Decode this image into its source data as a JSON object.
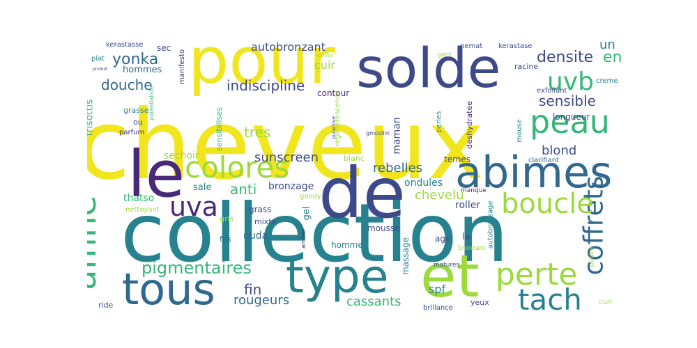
{
  "palette": {
    "yellow": "#f1e51d",
    "lime": "#9bd93c",
    "green": "#35b779",
    "teal": "#26828e",
    "steel": "#31688e",
    "indigo": "#3e4989",
    "purple": "#482878",
    "violet": "#440154"
  },
  "words": [
    {
      "text": "cheveux",
      "color": "yellow"
    },
    {
      "text": "collection",
      "color": "teal"
    },
    {
      "text": "de",
      "color": "indigo"
    },
    {
      "text": "pour",
      "color": "yellow"
    },
    {
      "text": "solde",
      "color": "indigo"
    },
    {
      "text": "le",
      "color": "purple"
    },
    {
      "text": "et",
      "color": "lime"
    },
    {
      "text": "type",
      "color": "teal"
    },
    {
      "text": "tous",
      "color": "steel"
    },
    {
      "text": "abimes",
      "color": "steel"
    },
    {
      "text": "affine",
      "color": "green"
    },
    {
      "text": "coffrets",
      "color": "steel"
    },
    {
      "text": "colores",
      "color": "lime"
    },
    {
      "text": "peau",
      "color": "green"
    },
    {
      "text": "boucle",
      "color": "lime"
    },
    {
      "text": "perte",
      "color": "lime"
    },
    {
      "text": "tach",
      "color": "teal"
    },
    {
      "text": "uvb",
      "color": "green"
    },
    {
      "text": "uva",
      "color": "purple"
    },
    {
      "text": "pigmentaires",
      "color": "green"
    },
    {
      "text": "yonka",
      "color": "steel"
    },
    {
      "text": "densite",
      "color": "indigo"
    },
    {
      "text": "en",
      "color": "green"
    },
    {
      "text": "un",
      "color": "teal"
    },
    {
      "text": "sensible",
      "color": "indigo"
    },
    {
      "text": "douche",
      "color": "steel"
    },
    {
      "text": "indiscipline",
      "color": "indigo"
    },
    {
      "text": "autobronzant",
      "color": "indigo"
    },
    {
      "text": "cuir",
      "color": "lime"
    },
    {
      "text": "contour",
      "color": "purple"
    },
    {
      "text": "blond",
      "color": "indigo"
    },
    {
      "text": "rebelles",
      "color": "steel"
    },
    {
      "text": "anti",
      "color": "green"
    },
    {
      "text": "tres",
      "color": "lime"
    },
    {
      "text": "sunscreen",
      "color": "indigo"
    },
    {
      "text": "fin",
      "color": "indigo"
    },
    {
      "text": "rougeurs",
      "color": "steel"
    },
    {
      "text": "cassants",
      "color": "green"
    },
    {
      "text": "spf",
      "color": "teal"
    },
    {
      "text": "chevelu",
      "color": "lime"
    },
    {
      "text": "ondules",
      "color": "teal"
    },
    {
      "text": "bronzage",
      "color": "indigo"
    },
    {
      "text": "maman",
      "color": "indigo"
    },
    {
      "text": "sechoir",
      "color": "lime"
    },
    {
      "text": "thatso",
      "color": "green"
    },
    {
      "text": "sale",
      "color": "teal"
    },
    {
      "text": "hommes",
      "color": "steel"
    },
    {
      "text": "sec",
      "color": "indigo"
    },
    {
      "text": "kerastasse",
      "color": "indigo"
    },
    {
      "text": "plat",
      "color": "teal"
    },
    {
      "text": "produit",
      "color": "indigo"
    },
    {
      "text": "manifesto",
      "color": "purple"
    },
    {
      "text": "collin",
      "color": "lime"
    },
    {
      "text": "gant",
      "color": "lime"
    },
    {
      "text": "nemat",
      "color": "indigo"
    },
    {
      "text": "kerastase",
      "color": "indigo"
    },
    {
      "text": "racine",
      "color": "indigo"
    },
    {
      "text": "creme",
      "color": "teal"
    },
    {
      "text": "exfoliant",
      "color": "indigo"
    },
    {
      "text": "longueur",
      "color": "indigo"
    },
    {
      "text": "deshydratee",
      "color": "purple"
    },
    {
      "text": "perles",
      "color": "teal"
    },
    {
      "text": "mouse",
      "color": "teal"
    },
    {
      "text": "clarifiant",
      "color": "steel"
    },
    {
      "text": "ternes",
      "color": "indigo"
    },
    {
      "text": "blanc",
      "color": "lime"
    },
    {
      "text": "regenerescence",
      "color": "lime"
    },
    {
      "text": "puractive",
      "color": "indigo"
    },
    {
      "text": "gmcollin",
      "color": "indigo"
    },
    {
      "text": "grasse",
      "color": "teal"
    },
    {
      "text": "ou",
      "color": "indigo"
    },
    {
      "text": "parfum",
      "color": "purple"
    },
    {
      "text": "potentialiste",
      "color": "green"
    },
    {
      "text": "frisottis",
      "color": "green"
    },
    {
      "text": "sensibilises",
      "color": "green"
    },
    {
      "text": "grass",
      "color": "indigo"
    },
    {
      "text": "goody",
      "color": "lime"
    },
    {
      "text": "gris",
      "color": "lime"
    },
    {
      "text": "mixte",
      "color": "indigo"
    },
    {
      "text": "gel",
      "color": "teal"
    },
    {
      "text": "amber",
      "color": "purple"
    },
    {
      "text": "fps",
      "color": "steel"
    },
    {
      "text": "nuda",
      "color": "steel"
    },
    {
      "text": "roller",
      "color": "indigo"
    },
    {
      "text": "manque",
      "color": "purple"
    },
    {
      "text": "nettoyant",
      "color": "lime"
    },
    {
      "text": "mousse",
      "color": "indigo"
    },
    {
      "text": "age",
      "color": "indigo"
    },
    {
      "text": "la",
      "color": "indigo"
    },
    {
      "text": "homme",
      "color": "teal"
    },
    {
      "text": "massage",
      "color": "teal"
    },
    {
      "text": "bronzant",
      "color": "lime"
    },
    {
      "text": "autobronzage",
      "color": "teal"
    },
    {
      "text": "matures",
      "color": "indigo"
    },
    {
      "text": "solaire",
      "color": "lime"
    },
    {
      "text": "brillance",
      "color": "indigo"
    },
    {
      "text": "yeux",
      "color": "indigo"
    },
    {
      "text": "ride",
      "color": "indigo"
    },
    {
      "text": "curl",
      "color": "lime"
    }
  ]
}
